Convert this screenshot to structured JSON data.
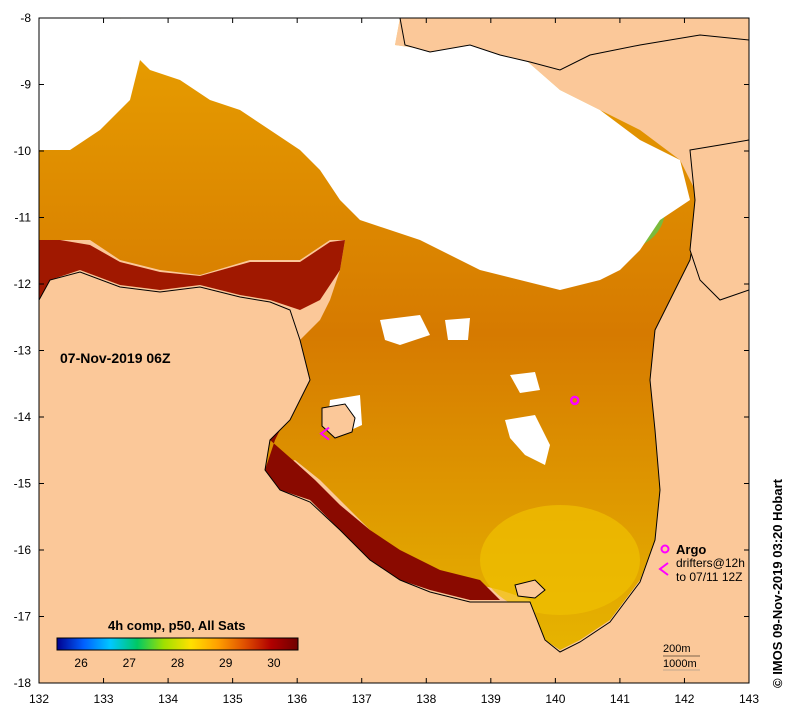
{
  "map": {
    "date_label": "07-Nov-2019 06Z",
    "credit": "© IMOS 09-Nov-2019 03:20 Hobart",
    "lon_ticks": [
      "132",
      "133",
      "134",
      "135",
      "136",
      "137",
      "138",
      "139",
      "140",
      "141",
      "142",
      "143"
    ],
    "lat_ticks": [
      "-8",
      "-9",
      "-10",
      "-11",
      "-12",
      "-13",
      "-14",
      "-15",
      "-16",
      "-17",
      "-18"
    ],
    "lon_range": [
      132,
      143
    ],
    "lat_range": [
      -18,
      -8
    ],
    "colors": {
      "land": "#fbc899",
      "cloud": "#ffffff",
      "argo": "#ff00ff",
      "drifter": "#ff00ff"
    }
  },
  "legend": {
    "title": "4h comp, p50, All Sats",
    "ticks": [
      "26",
      "27",
      "28",
      "29",
      "30"
    ],
    "colors": [
      "#000090",
      "#0060ff",
      "#00c8ff",
      "#00c864",
      "#a0e000",
      "#ffe000",
      "#ffa000",
      "#e05000",
      "#b00000",
      "#700000"
    ],
    "range": [
      25.5,
      30.5
    ]
  },
  "key": {
    "argo_label": "Argo",
    "drifter_label": "drifters@12h",
    "drifter_to": "to 07/11 12Z",
    "depth_200": "200m",
    "depth_1000": "1000m"
  },
  "markers": {
    "argo": [
      {
        "lon": 140.3,
        "lat": -13.75
      }
    ],
    "drifters": [
      {
        "lon": 136.4,
        "lat": -14.25
      }
    ]
  }
}
